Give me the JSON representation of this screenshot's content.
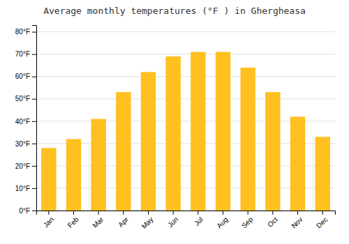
{
  "chart_data": {
    "type": "bar",
    "title": "Average monthly temperatures (°F ) in Ghergheasa",
    "categories": [
      "Jan",
      "Feb",
      "Mar",
      "Apr",
      "May",
      "Jun",
      "Jul",
      "Aug",
      "Sep",
      "Oct",
      "Nov",
      "Dec"
    ],
    "values": [
      28,
      32,
      41,
      53,
      62,
      69,
      71,
      71,
      64,
      53,
      42,
      33
    ],
    "color": "#FFC020",
    "ylim": [
      0,
      83
    ],
    "yticks": [
      {
        "value": 0,
        "label": "0°F"
      },
      {
        "value": 10,
        "label": "10°F"
      },
      {
        "value": 20,
        "label": "20°F"
      },
      {
        "value": 30,
        "label": "30°F"
      },
      {
        "value": 40,
        "label": "40°F"
      },
      {
        "value": 50,
        "label": "50°F"
      },
      {
        "value": 60,
        "label": "60°F"
      },
      {
        "value": 70,
        "label": "70°F"
      },
      {
        "value": 80,
        "label": "80°F"
      }
    ],
    "grid": true
  }
}
